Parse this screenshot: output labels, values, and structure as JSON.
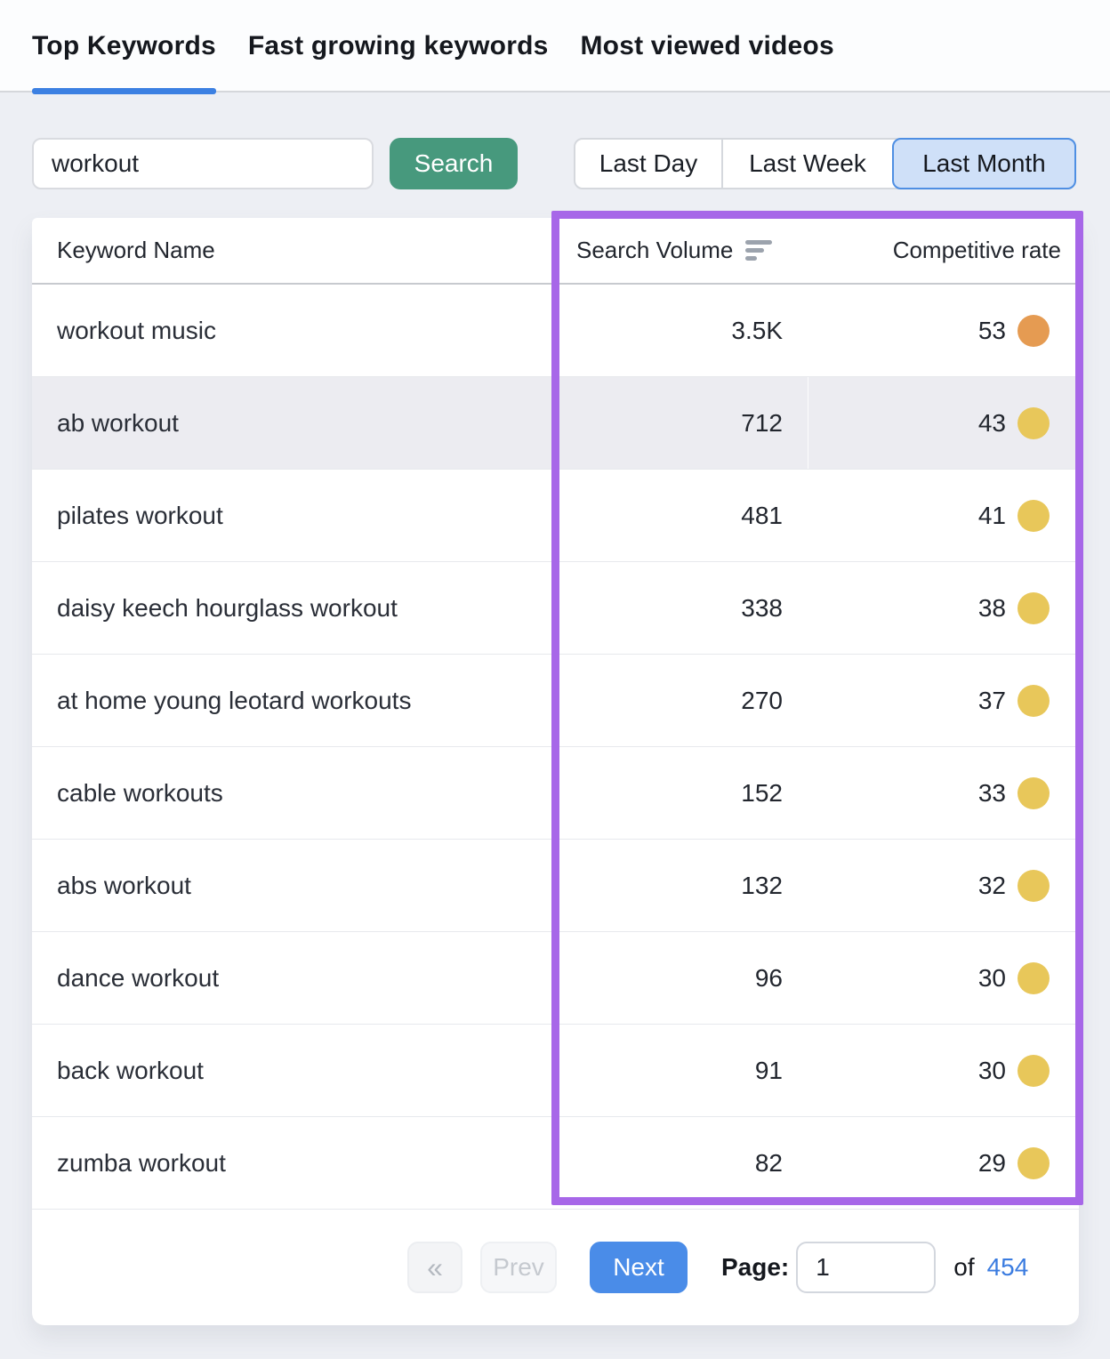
{
  "tabs": [
    {
      "label": "Top Keywords",
      "active": true
    },
    {
      "label": "Fast growing keywords",
      "active": false
    },
    {
      "label": "Most viewed videos",
      "active": false
    }
  ],
  "search": {
    "value": "workout",
    "button_label": "Search"
  },
  "time_filters": [
    {
      "label": "Last Day",
      "selected": false
    },
    {
      "label": "Last Week",
      "selected": false
    },
    {
      "label": "Last Month",
      "selected": true
    }
  ],
  "table": {
    "columns": {
      "keyword": "Keyword Name",
      "volume": "Search Volume",
      "rate": "Competitive rate"
    },
    "rows": [
      {
        "keyword": "workout music",
        "volume": "3.5K",
        "rate": "53",
        "dot_color": "#e59b52",
        "highlighted": false
      },
      {
        "keyword": "ab workout",
        "volume": "712",
        "rate": "43",
        "dot_color": "#e8c75a",
        "highlighted": true
      },
      {
        "keyword": "pilates workout",
        "volume": "481",
        "rate": "41",
        "dot_color": "#e8c75a",
        "highlighted": false
      },
      {
        "keyword": "daisy keech hourglass workout",
        "volume": "338",
        "rate": "38",
        "dot_color": "#e8c75a",
        "highlighted": false
      },
      {
        "keyword": "at home young leotard workouts",
        "volume": "270",
        "rate": "37",
        "dot_color": "#e8c75a",
        "highlighted": false
      },
      {
        "keyword": "cable workouts",
        "volume": "152",
        "rate": "33",
        "dot_color": "#e8c75a",
        "highlighted": false
      },
      {
        "keyword": "abs workout",
        "volume": "132",
        "rate": "32",
        "dot_color": "#e8c75a",
        "highlighted": false
      },
      {
        "keyword": "dance workout",
        "volume": "96",
        "rate": "30",
        "dot_color": "#e8c75a",
        "highlighted": false
      },
      {
        "keyword": "back workout",
        "volume": "91",
        "rate": "30",
        "dot_color": "#e8c75a",
        "highlighted": false
      },
      {
        "keyword": "zumba workout",
        "volume": "82",
        "rate": "29",
        "dot_color": "#e8c75a",
        "highlighted": false
      }
    ]
  },
  "pagination": {
    "first_label": "«",
    "prev_label": "Prev",
    "next_label": "Next",
    "page_label": "Page:",
    "page_value": "1",
    "of_label": "of",
    "total_pages": "454"
  },
  "colors": {
    "accent_blue": "#3c80e2",
    "button_blue": "#4a8ce8",
    "link_blue": "#3b7ce0",
    "green": "#47997d",
    "selected_filter_bg": "#cfe0f8",
    "annotation_purple": "#a767e8"
  }
}
